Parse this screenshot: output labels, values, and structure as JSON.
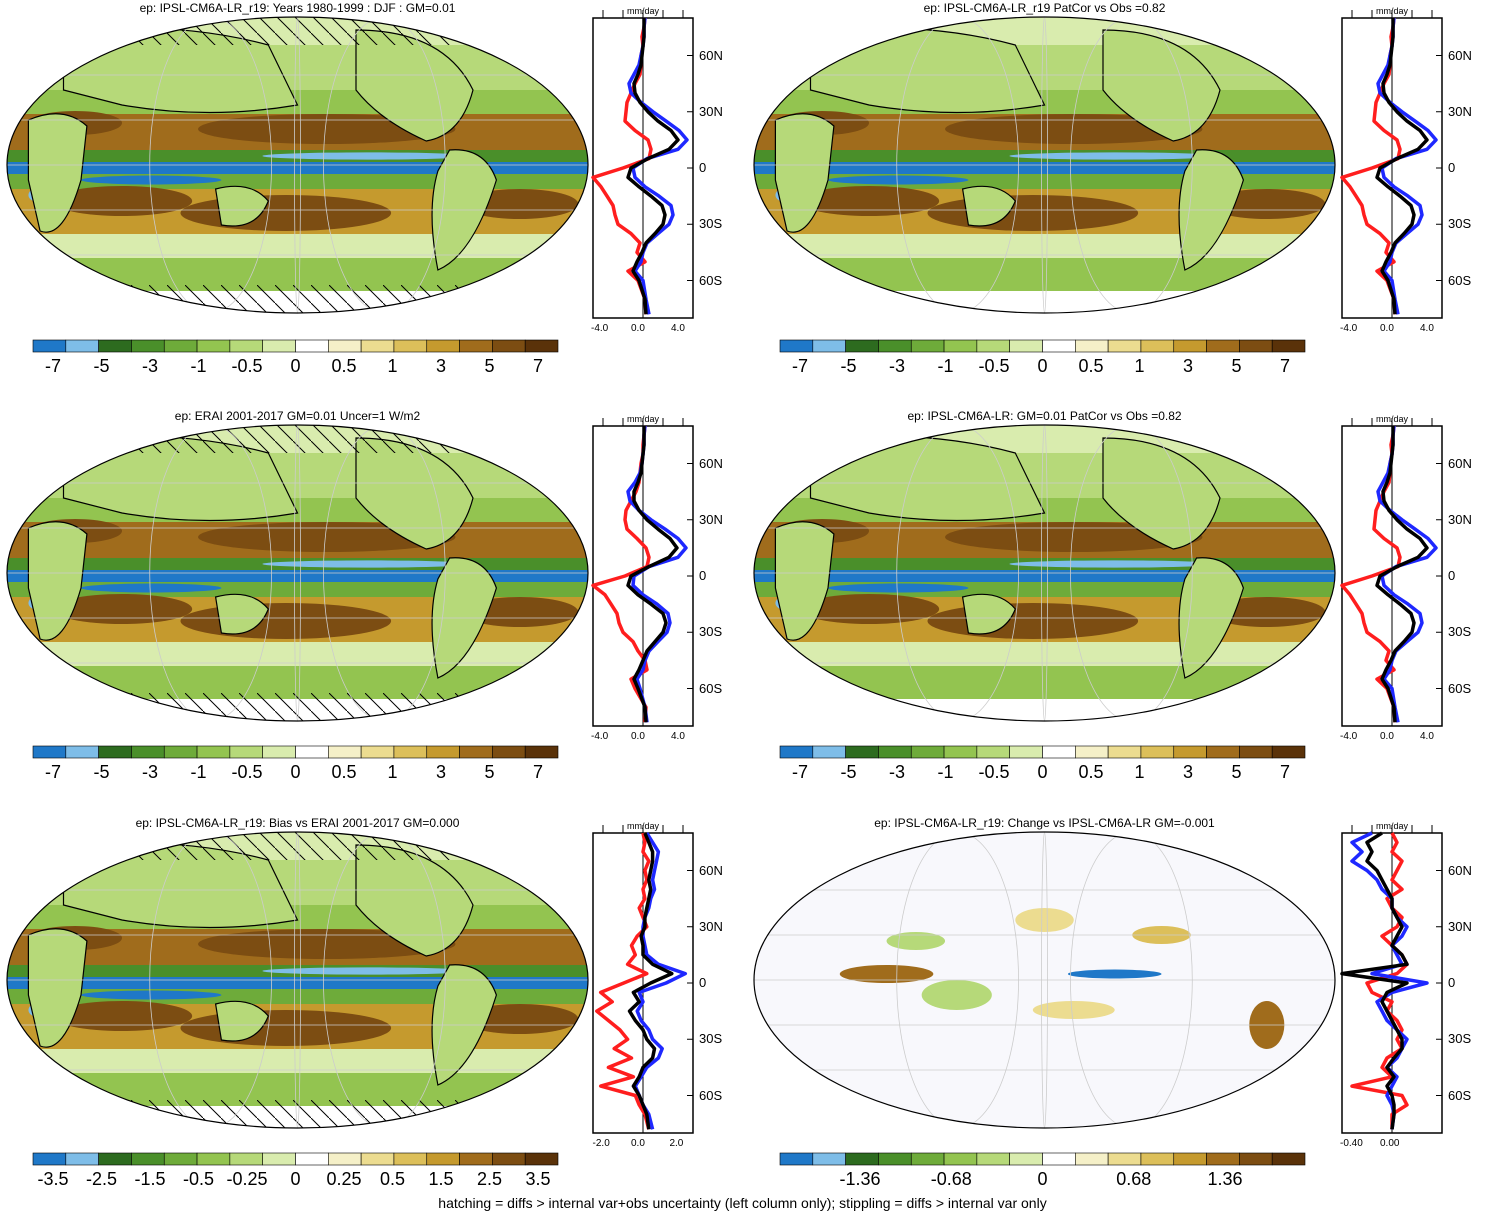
{
  "colors": {
    "palette": [
      "#1f78c8",
      "#7ebde8",
      "#2d6b1f",
      "#4a8f2a",
      "#6eab3a",
      "#93c450",
      "#b6d979",
      "#d9ecae",
      "#ffffff",
      "#f5f0c8",
      "#ecdc90",
      "#dcbf5a",
      "#c59a2e",
      "#a06c1c",
      "#7c4d12",
      "#5a3209"
    ],
    "series_red": "#ff1e1e",
    "series_blue": "#1e28ff",
    "series_black": "#000000"
  },
  "footer": "hatching = diffs > internal var+obs uncertainty (left column only); stippling = diffs > internal var only",
  "panels": [
    {
      "title": "ep: IPSL-CM6A-LR_r19: Years 1980-1999 : DJF : GM=0.01",
      "unit": "mm/day",
      "lat_labels": [
        "60N",
        "30N",
        "0",
        "30S",
        "60S"
      ],
      "x_ticks": [
        "-4.0",
        "0.0",
        "4.0"
      ],
      "colorbar_labels": [
        "-7",
        "-5",
        "-3",
        "-1",
        "-0.5",
        "0",
        "0.5",
        "1",
        "3",
        "5",
        "7"
      ]
    },
    {
      "title": "ep: IPSL-CM6A-LR_r19 PatCor vs Obs =0.82",
      "unit": "mm/day",
      "lat_labels": [
        "60N",
        "30N",
        "0",
        "30S",
        "60S"
      ],
      "x_ticks": [
        "-4.0",
        "0.0",
        "4.0"
      ],
      "colorbar_labels": [
        "-7",
        "-5",
        "-3",
        "-1",
        "-0.5",
        "0",
        "0.5",
        "1",
        "3",
        "5",
        "7"
      ]
    },
    {
      "title": "ep: ERAI 2001-2017 GM=0.01 Uncer=1 W/m2",
      "unit": "mm/day",
      "lat_labels": [
        "60N",
        "30N",
        "0",
        "30S",
        "60S"
      ],
      "x_ticks": [
        "-4.0",
        "0.0",
        "4.0"
      ],
      "colorbar_labels": [
        "-7",
        "-5",
        "-3",
        "-1",
        "-0.5",
        "0",
        "0.5",
        "1",
        "3",
        "5",
        "7"
      ]
    },
    {
      "title": "ep: IPSL-CM6A-LR: GM=0.01 PatCor vs Obs =0.82",
      "unit": "mm/day",
      "lat_labels": [
        "60N",
        "30N",
        "0",
        "30S",
        "60S"
      ],
      "x_ticks": [
        "-4.0",
        "0.0",
        "4.0"
      ],
      "colorbar_labels": [
        "-7",
        "-5",
        "-3",
        "-1",
        "-0.5",
        "0",
        "0.5",
        "1",
        "3",
        "5",
        "7"
      ]
    },
    {
      "title": "ep: IPSL-CM6A-LR_r19: Bias vs ERAI 2001-2017 GM=0.000",
      "unit": "mm/day",
      "lat_labels": [
        "60N",
        "30N",
        "0",
        "30S",
        "60S"
      ],
      "x_ticks": [
        "-2.0",
        "0.0",
        "2.0"
      ],
      "colorbar_labels": [
        "-3.5",
        "-2.5",
        "-1.5",
        "-0.5",
        "-0.25",
        "0",
        "0.25",
        "0.5",
        "1.5",
        "2.5",
        "3.5"
      ]
    },
    {
      "title": "ep: IPSL-CM6A-LR_r19: Change vs IPSL-CM6A-LR GM=-0.001",
      "unit": "mm/day",
      "lat_labels": [
        "60N",
        "30N",
        "0",
        "30S",
        "60S"
      ],
      "x_ticks": [
        "-0.40",
        "0.00"
      ],
      "colorbar_labels": [
        "-1.36",
        "-0.68",
        "0",
        "0.68",
        "1.36"
      ]
    }
  ],
  "chart_data": [
    {
      "type": "line",
      "panel": 1,
      "ylim": [
        -80,
        80
      ],
      "xlim": [
        -5,
        5
      ],
      "y": [
        -78,
        -70,
        -60,
        -55,
        -50,
        -45,
        -40,
        -35,
        -30,
        -25,
        -20,
        -15,
        -10,
        -5,
        0,
        5,
        10,
        15,
        20,
        25,
        30,
        35,
        40,
        45,
        50,
        55,
        60,
        65,
        70,
        75,
        80
      ],
      "series": [
        {
          "color": "red",
          "values": [
            0.3,
            0.2,
            -0.5,
            -1.5,
            0.2,
            -0.6,
            -0.3,
            -1.2,
            -2.5,
            -2.8,
            -3.0,
            -3.6,
            -4.2,
            -5.0,
            -2.0,
            0.6,
            0.8,
            0.5,
            -0.8,
            -1.8,
            -1.7,
            -1.6,
            -1.2,
            -0.8,
            -0.3,
            -0.2,
            -0.2,
            0.0,
            -0.1,
            0.1,
            0.2
          ]
        },
        {
          "color": "blue",
          "values": [
            0.6,
            0.3,
            0.0,
            -0.8,
            -0.2,
            0.0,
            0.4,
            1.5,
            2.6,
            3.0,
            2.8,
            1.6,
            0.2,
            -0.8,
            -1.0,
            0.4,
            3.5,
            4.4,
            3.6,
            2.3,
            1.0,
            -0.2,
            -1.2,
            -1.4,
            -0.9,
            -0.4,
            -0.2,
            0.0,
            0.1,
            0.1,
            0.2
          ]
        },
        {
          "color": "black",
          "values": [
            0.3,
            0.2,
            -0.4,
            -1.0,
            -0.6,
            -0.1,
            0.3,
            1.2,
            2.0,
            2.2,
            1.9,
            0.8,
            -0.4,
            -1.5,
            -1.2,
            0.5,
            2.6,
            3.5,
            2.8,
            1.5,
            0.5,
            -0.3,
            -0.8,
            -0.9,
            -0.5,
            -0.2,
            -0.1,
            0.0,
            0.1,
            0.1,
            0.1
          ]
        }
      ]
    },
    {
      "type": "line",
      "panel": 2,
      "ylim": [
        -80,
        80
      ],
      "xlim": [
        -5,
        5
      ],
      "y": [
        -78,
        -70,
        -60,
        -55,
        -50,
        -45,
        -40,
        -35,
        -30,
        -25,
        -20,
        -15,
        -10,
        -5,
        0,
        5,
        10,
        15,
        20,
        25,
        30,
        35,
        40,
        45,
        50,
        55,
        60,
        65,
        70,
        75,
        80
      ],
      "series": [
        {
          "color": "red",
          "values": [
            0.3,
            0.2,
            -0.5,
            -1.5,
            0.2,
            -0.6,
            -0.3,
            -1.2,
            -2.5,
            -2.8,
            -3.0,
            -3.6,
            -4.2,
            -5.0,
            -2.0,
            0.6,
            0.8,
            0.5,
            -0.8,
            -1.8,
            -1.7,
            -1.6,
            -1.2,
            -0.8,
            -0.3,
            -0.2,
            -0.2,
            0.0,
            -0.1,
            0.1,
            0.2
          ]
        },
        {
          "color": "blue",
          "values": [
            0.6,
            0.3,
            0.0,
            -0.8,
            -0.2,
            0.0,
            0.4,
            1.5,
            2.6,
            3.0,
            2.8,
            1.6,
            0.2,
            -0.8,
            -1.0,
            0.4,
            3.5,
            4.4,
            3.6,
            2.3,
            1.0,
            -0.2,
            -1.2,
            -1.4,
            -0.9,
            -0.4,
            -0.2,
            0.0,
            0.1,
            0.1,
            0.2
          ]
        },
        {
          "color": "black",
          "values": [
            0.3,
            0.2,
            -0.4,
            -1.0,
            -0.6,
            -0.1,
            0.3,
            1.2,
            2.0,
            2.2,
            1.9,
            0.8,
            -0.4,
            -1.5,
            -1.2,
            0.5,
            2.6,
            3.5,
            2.8,
            1.5,
            0.5,
            -0.3,
            -0.8,
            -0.9,
            -0.5,
            -0.2,
            -0.1,
            0.0,
            0.1,
            0.1,
            0.1
          ]
        }
      ]
    },
    {
      "type": "line",
      "panel": 3,
      "ylim": [
        -80,
        80
      ],
      "xlim": [
        -5,
        5
      ],
      "y": [
        -78,
        -70,
        -60,
        -55,
        -50,
        -45,
        -40,
        -35,
        -30,
        -25,
        -20,
        -15,
        -10,
        -5,
        0,
        5,
        10,
        15,
        20,
        25,
        30,
        35,
        40,
        45,
        50,
        55,
        60,
        65,
        70,
        75,
        80
      ],
      "series": [
        {
          "color": "red",
          "values": [
            0.2,
            0.3,
            -0.8,
            -1.2,
            0.4,
            0.2,
            -0.5,
            -1.0,
            -2.0,
            -2.4,
            -2.6,
            -3.2,
            -3.8,
            -5.0,
            -1.8,
            0.4,
            0.6,
            0.3,
            -0.6,
            -1.6,
            -1.8,
            -1.7,
            -1.2,
            -0.7,
            -0.4,
            -0.3,
            -0.2,
            0.0,
            0.0,
            0.1,
            0.2
          ]
        },
        {
          "color": "blue",
          "values": [
            0.4,
            0.2,
            -0.3,
            -0.6,
            0.0,
            0.2,
            0.6,
            1.5,
            2.4,
            2.7,
            2.5,
            1.4,
            0.0,
            -1.0,
            -0.9,
            0.6,
            3.5,
            4.3,
            3.5,
            2.2,
            0.8,
            -0.4,
            -1.3,
            -1.5,
            -0.8,
            -0.3,
            -0.1,
            0.0,
            0.1,
            0.1,
            0.2
          ]
        },
        {
          "color": "black",
          "values": [
            0.3,
            0.2,
            -0.5,
            -0.9,
            -0.4,
            0.0,
            0.4,
            1.2,
            2.0,
            2.3,
            2.0,
            0.8,
            -0.5,
            -1.5,
            -1.2,
            0.6,
            2.6,
            3.4,
            2.7,
            1.5,
            0.4,
            -0.4,
            -0.9,
            -0.9,
            -0.5,
            -0.2,
            -0.1,
            0.0,
            0.1,
            0.1,
            0.1
          ]
        }
      ]
    },
    {
      "type": "line",
      "panel": 4,
      "ylim": [
        -80,
        80
      ],
      "xlim": [
        -5,
        5
      ],
      "y": [
        -78,
        -70,
        -60,
        -55,
        -50,
        -45,
        -40,
        -35,
        -30,
        -25,
        -20,
        -15,
        -10,
        -5,
        0,
        5,
        10,
        15,
        20,
        25,
        30,
        35,
        40,
        45,
        50,
        55,
        60,
        65,
        70,
        75,
        80
      ],
      "series": [
        {
          "color": "red",
          "values": [
            0.3,
            0.2,
            -0.5,
            -1.5,
            0.2,
            -0.6,
            -0.3,
            -1.2,
            -2.5,
            -2.8,
            -3.0,
            -3.6,
            -4.2,
            -5.0,
            -2.0,
            0.6,
            0.8,
            0.5,
            -0.8,
            -1.8,
            -1.7,
            -1.6,
            -1.2,
            -0.8,
            -0.3,
            -0.2,
            -0.2,
            0.0,
            -0.1,
            0.1,
            0.2
          ]
        },
        {
          "color": "blue",
          "values": [
            0.6,
            0.3,
            0.0,
            -0.8,
            -0.2,
            0.0,
            0.4,
            1.5,
            2.6,
            3.0,
            2.8,
            1.6,
            0.2,
            -0.8,
            -1.0,
            0.4,
            3.5,
            4.4,
            3.6,
            2.3,
            1.0,
            -0.2,
            -1.2,
            -1.4,
            -0.9,
            -0.4,
            -0.2,
            0.0,
            0.1,
            0.1,
            0.2
          ]
        },
        {
          "color": "black",
          "values": [
            0.3,
            0.2,
            -0.4,
            -1.0,
            -0.6,
            -0.1,
            0.3,
            1.2,
            2.0,
            2.2,
            1.9,
            0.8,
            -0.4,
            -1.5,
            -1.2,
            0.5,
            2.6,
            3.5,
            2.8,
            1.5,
            0.5,
            -0.3,
            -0.8,
            -0.9,
            -0.5,
            -0.2,
            -0.1,
            0.0,
            0.1,
            0.1,
            0.1
          ]
        }
      ]
    },
    {
      "type": "line",
      "panel": 5,
      "ylim": [
        -80,
        80
      ],
      "xlim": [
        -2.6,
        2.6
      ],
      "y": [
        -78,
        -70,
        -65,
        -60,
        -55,
        -50,
        -45,
        -40,
        -35,
        -30,
        -25,
        -20,
        -15,
        -10,
        -5,
        0,
        5,
        10,
        15,
        20,
        25,
        30,
        35,
        40,
        45,
        50,
        55,
        60,
        65,
        70,
        75,
        80
      ],
      "series": [
        {
          "color": "red",
          "values": [
            0.3,
            0.1,
            -0.2,
            -0.4,
            -2.2,
            -0.5,
            -1.8,
            -0.6,
            -1.5,
            -0.8,
            -1.2,
            -1.8,
            -2.4,
            -1.6,
            -2.2,
            -1.0,
            0.2,
            -0.8,
            -0.4,
            -0.6,
            -0.3,
            0.2,
            0.0,
            -0.2,
            0.1,
            0.0,
            0.2,
            0.1,
            0.3,
            0.0,
            0.1,
            0.0
          ]
        },
        {
          "color": "blue",
          "values": [
            0.5,
            0.3,
            0.0,
            -0.2,
            -0.4,
            -0.1,
            0.2,
            0.8,
            1.0,
            0.5,
            0.3,
            -0.1,
            -0.3,
            0.0,
            -0.2,
            1.2,
            2.2,
            0.8,
            0.2,
            0.1,
            0.0,
            0.0,
            0.1,
            0.3,
            0.4,
            0.6,
            0.5,
            0.6,
            0.7,
            0.8,
            0.5,
            0.2
          ]
        },
        {
          "color": "black",
          "values": [
            0.3,
            0.2,
            0.0,
            -0.2,
            -0.5,
            -0.2,
            0.0,
            0.5,
            0.6,
            0.2,
            0.0,
            -0.4,
            -0.7,
            -0.2,
            -0.5,
            0.4,
            1.5,
            0.5,
            0.0,
            0.0,
            -0.1,
            0.1,
            0.1,
            0.2,
            0.3,
            0.4,
            0.3,
            0.4,
            0.5,
            0.5,
            0.3,
            0.1
          ]
        }
      ]
    },
    {
      "type": "line",
      "panel": 6,
      "ylim": [
        -80,
        80
      ],
      "xlim": [
        -0.5,
        0.5
      ],
      "y": [
        -78,
        -70,
        -65,
        -60,
        -55,
        -50,
        -45,
        -40,
        -35,
        -30,
        -25,
        -20,
        -15,
        -10,
        -5,
        0,
        5,
        10,
        15,
        20,
        25,
        30,
        35,
        40,
        45,
        50,
        55,
        60,
        65,
        70,
        75,
        80
      ],
      "series": [
        {
          "color": "red",
          "values": [
            0.0,
            0.0,
            0.15,
            0.1,
            -0.4,
            0.0,
            -0.1,
            -0.05,
            0.1,
            0.05,
            0.1,
            0.05,
            -0.05,
            0.0,
            -0.2,
            -0.25,
            0.05,
            0.15,
            0.1,
            0.0,
            -0.1,
            0.05,
            0.1,
            0.0,
            -0.05,
            0.1,
            0.0,
            0.05,
            0.1,
            0.0,
            0.05,
            0.0
          ]
        },
        {
          "color": "blue",
          "values": [
            0.0,
            0.02,
            0.0,
            -0.05,
            0.0,
            0.05,
            -0.05,
            0.05,
            0.1,
            0.15,
            0.05,
            -0.05,
            -0.1,
            -0.15,
            0.0,
            0.35,
            -0.2,
            0.1,
            0.05,
            0.0,
            0.1,
            0.15,
            0.05,
            0.0,
            0.0,
            -0.1,
            -0.15,
            -0.25,
            -0.4,
            -0.3,
            -0.4,
            -0.2
          ]
        },
        {
          "color": "black",
          "values": [
            0.0,
            0.02,
            0.02,
            0.0,
            -0.05,
            0.02,
            -0.05,
            0.02,
            0.1,
            0.1,
            0.05,
            0.0,
            -0.05,
            -0.1,
            -0.05,
            0.15,
            -0.5,
            0.15,
            0.1,
            0.0,
            0.05,
            0.1,
            0.05,
            0.0,
            0.0,
            -0.05,
            -0.1,
            -0.15,
            -0.25,
            -0.2,
            -0.25,
            -0.1
          ]
        }
      ]
    }
  ]
}
